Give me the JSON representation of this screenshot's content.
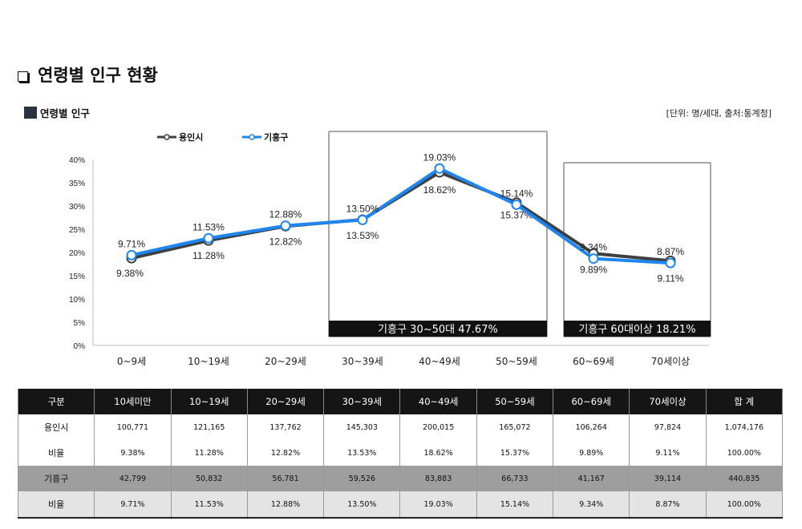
{
  "header": {
    "page_title": "연령별 인구 현황",
    "section_title": "연령별 인구",
    "unit_note": "[단위: 명/세대, 출처:통계청]"
  },
  "chart_data": {
    "type": "line",
    "categories": [
      "0~9세",
      "10~19세",
      "20~29세",
      "30~39세",
      "40~49세",
      "50~59세",
      "60~69세",
      "70세이상"
    ],
    "ylim": [
      0,
      40
    ],
    "yticks": [
      "0%",
      "5%",
      "10%",
      "15%",
      "20%",
      "25%",
      "30%",
      "35%",
      "40%"
    ],
    "series": [
      {
        "name": "용인시",
        "color": "#3f3f3f",
        "values": [
          9.38,
          11.28,
          12.82,
          13.53,
          18.62,
          15.37,
          9.89,
          9.11
        ],
        "labels": [
          "9.38%",
          "11.28%",
          "12.82%",
          "13.53%",
          "18.62%",
          "15.37%",
          "9.89%",
          "9.11%"
        ]
      },
      {
        "name": "기흥구",
        "color": "#1f86f0",
        "values": [
          9.71,
          11.53,
          12.88,
          13.5,
          19.03,
          15.14,
          9.34,
          8.87
        ],
        "labels": [
          "9.71%",
          "11.53%",
          "12.88%",
          "13.50%",
          "19.03%",
          "15.14%",
          "9.34%",
          "8.87%"
        ]
      }
    ],
    "annotations": [
      {
        "text": "기흥구 30~50대 47.67%",
        "from_category": 3,
        "to_category": 5
      },
      {
        "text": "기흥구 60대이상 18.21%",
        "from_category": 6,
        "to_category": 7
      }
    ],
    "legend_position": "top-left"
  },
  "table": {
    "headers": [
      "구분",
      "10세미만",
      "10~19세",
      "20~29세",
      "30~39세",
      "40~49세",
      "50~59세",
      "60~69세",
      "70세이상",
      "합 계"
    ],
    "rows": [
      {
        "style": "white",
        "cells": [
          "용인시",
          "100,771",
          "121,165",
          "137,762",
          "145,303",
          "200,015",
          "165,072",
          "106,264",
          "97,824",
          "1,074,176"
        ]
      },
      {
        "style": "white",
        "cells": [
          "비율",
          "9.38%",
          "11.28%",
          "12.82%",
          "13.53%",
          "18.62%",
          "15.37%",
          "9.89%",
          "9.11%",
          "100.00%"
        ]
      },
      {
        "style": "gray",
        "cells": [
          "기흥구",
          "42,799",
          "50,832",
          "56,781",
          "59,526",
          "83,883",
          "66,733",
          "41,167",
          "39,114",
          "440,835"
        ]
      },
      {
        "style": "light",
        "cells": [
          "비율",
          "9.71%",
          "11.53%",
          "12.88%",
          "13.50%",
          "19.03%",
          "15.14%",
          "9.34%",
          "8.87%",
          "100.00%"
        ]
      }
    ]
  }
}
